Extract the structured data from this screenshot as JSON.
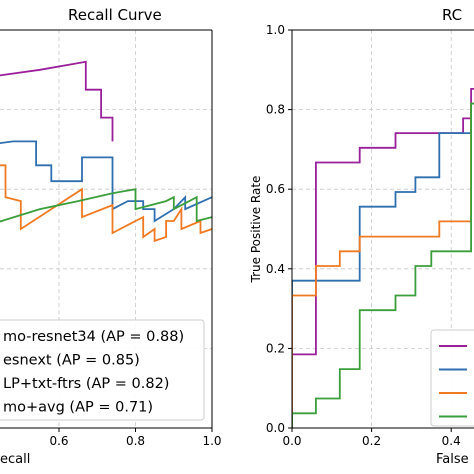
{
  "chart_data": [
    {
      "type": "line",
      "title": "Recall Curve",
      "xlabel": "ecall",
      "ylabel": "",
      "xlim": [
        0.35,
        1.0
      ],
      "ylim": [
        0.0,
        1.0
      ],
      "x_ticks": [
        "0.6",
        "0.8",
        "1.0"
      ],
      "x_tick_values": [
        0.6,
        0.8,
        1.0
      ],
      "y_ticks": [],
      "grid": true,
      "legend_position": "bottom-left",
      "series": [
        {
          "name": "mo-resnet34 (AP = 0.88)",
          "color": "#9a1f9a",
          "points": [
            [
              0.35,
              0.87
            ],
            [
              0.4,
              0.88
            ],
            [
              0.55,
              0.9
            ],
            [
              0.67,
              0.92
            ],
            [
              0.67,
              0.85
            ],
            [
              0.71,
              0.85
            ],
            [
              0.71,
              0.78
            ],
            [
              0.74,
              0.78
            ],
            [
              0.74,
              0.72
            ]
          ]
        },
        {
          "name": "esnext (AP = 0.85)",
          "color": "#2e6fb0",
          "points": [
            [
              0.35,
              0.72
            ],
            [
              0.4,
              0.71
            ],
            [
              0.48,
              0.72
            ],
            [
              0.54,
              0.72
            ],
            [
              0.54,
              0.66
            ],
            [
              0.58,
              0.66
            ],
            [
              0.58,
              0.62
            ],
            [
              0.66,
              0.62
            ],
            [
              0.66,
              0.68
            ],
            [
              0.69,
              0.68
            ],
            [
              0.74,
              0.68
            ],
            [
              0.74,
              0.55
            ],
            [
              0.78,
              0.57
            ],
            [
              0.82,
              0.57
            ],
            [
              0.82,
              0.55
            ],
            [
              0.85,
              0.55
            ],
            [
              0.85,
              0.52
            ],
            [
              0.9,
              0.55
            ],
            [
              0.93,
              0.58
            ],
            [
              0.93,
              0.55
            ],
            [
              1.0,
              0.58
            ]
          ]
        },
        {
          "name": "LP+txt-ftrs (AP = 0.82)",
          "color": "#f07a22",
          "points": [
            [
              0.35,
              0.66
            ],
            [
              0.45,
              0.66
            ],
            [
              0.46,
              0.66
            ],
            [
              0.46,
              0.58
            ],
            [
              0.5,
              0.57
            ],
            [
              0.5,
              0.5
            ],
            [
              0.58,
              0.55
            ],
            [
              0.66,
              0.6
            ],
            [
              0.66,
              0.53
            ],
            [
              0.74,
              0.56
            ],
            [
              0.74,
              0.49
            ],
            [
              0.8,
              0.52
            ],
            [
              0.82,
              0.53
            ],
            [
              0.82,
              0.48
            ],
            [
              0.85,
              0.5
            ],
            [
              0.85,
              0.47
            ],
            [
              0.88,
              0.48
            ],
            [
              0.88,
              0.52
            ],
            [
              0.9,
              0.52
            ],
            [
              0.92,
              0.55
            ],
            [
              0.92,
              0.5
            ],
            [
              0.97,
              0.52
            ],
            [
              0.97,
              0.49
            ],
            [
              1.0,
              0.5
            ]
          ]
        },
        {
          "name": "mo+avg (AP = 0.71)",
          "color": "#3a9e3a",
          "points": [
            [
              0.35,
              0.49
            ],
            [
              0.45,
              0.52
            ],
            [
              0.55,
              0.55
            ],
            [
              0.65,
              0.57
            ],
            [
              0.74,
              0.59
            ],
            [
              0.8,
              0.6
            ],
            [
              0.8,
              0.55
            ],
            [
              0.88,
              0.57
            ],
            [
              0.9,
              0.58
            ],
            [
              0.9,
              0.55
            ],
            [
              0.96,
              0.58
            ],
            [
              0.96,
              0.52
            ],
            [
              1.0,
              0.53
            ]
          ]
        }
      ]
    },
    {
      "type": "line",
      "title": "RC",
      "xlabel": "False",
      "ylabel": "True Positive Rate",
      "xlim": [
        0.0,
        0.5
      ],
      "ylim": [
        0.0,
        1.0
      ],
      "x_ticks": [
        "0.0",
        "0.2",
        "0.4"
      ],
      "x_tick_values": [
        0.0,
        0.2,
        0.4
      ],
      "y_ticks": [
        "0.0",
        "0.2",
        "0.4",
        "0.6",
        "0.8",
        "1.0"
      ],
      "y_tick_values": [
        0.0,
        0.2,
        0.4,
        0.6,
        0.8,
        1.0
      ],
      "grid": true,
      "legend_position": "bottom-right",
      "series": [
        {
          "name": "",
          "color": "#9a1f9a",
          "points": [
            [
              0.0,
              0.0
            ],
            [
              0.0,
              0.185
            ],
            [
              0.06,
              0.185
            ],
            [
              0.06,
              0.667
            ],
            [
              0.17,
              0.667
            ],
            [
              0.17,
              0.704
            ],
            [
              0.26,
              0.704
            ],
            [
              0.26,
              0.741
            ],
            [
              0.43,
              0.741
            ],
            [
              0.43,
              0.778
            ],
            [
              0.45,
              0.778
            ],
            [
              0.45,
              0.852
            ],
            [
              0.5,
              0.852
            ]
          ]
        },
        {
          "name": "",
          "color": "#2e6fb0",
          "points": [
            [
              0.0,
              0.0
            ],
            [
              0.0,
              0.37
            ],
            [
              0.17,
              0.37
            ],
            [
              0.17,
              0.556
            ],
            [
              0.26,
              0.556
            ],
            [
              0.26,
              0.593
            ],
            [
              0.31,
              0.593
            ],
            [
              0.31,
              0.63
            ],
            [
              0.37,
              0.63
            ],
            [
              0.37,
              0.741
            ],
            [
              0.45,
              0.741
            ],
            [
              0.45,
              0.815
            ],
            [
              0.5,
              0.815
            ]
          ]
        },
        {
          "name": "",
          "color": "#f07a22",
          "points": [
            [
              0.0,
              0.0
            ],
            [
              0.0,
              0.333
            ],
            [
              0.06,
              0.333
            ],
            [
              0.06,
              0.407
            ],
            [
              0.12,
              0.407
            ],
            [
              0.12,
              0.444
            ],
            [
              0.17,
              0.444
            ],
            [
              0.17,
              0.481
            ],
            [
              0.37,
              0.481
            ],
            [
              0.37,
              0.519
            ],
            [
              0.45,
              0.519
            ],
            [
              0.45,
              0.815
            ],
            [
              0.5,
              0.815
            ]
          ]
        },
        {
          "name": "",
          "color": "#3a9e3a",
          "points": [
            [
              0.0,
              0.0
            ],
            [
              0.0,
              0.037
            ],
            [
              0.06,
              0.037
            ],
            [
              0.06,
              0.074
            ],
            [
              0.12,
              0.074
            ],
            [
              0.12,
              0.148
            ],
            [
              0.17,
              0.148
            ],
            [
              0.17,
              0.296
            ],
            [
              0.26,
              0.296
            ],
            [
              0.26,
              0.333
            ],
            [
              0.31,
              0.333
            ],
            [
              0.31,
              0.407
            ],
            [
              0.35,
              0.407
            ],
            [
              0.35,
              0.444
            ],
            [
              0.45,
              0.444
            ],
            [
              0.45,
              0.815
            ],
            [
              0.5,
              0.815
            ]
          ]
        }
      ]
    }
  ]
}
